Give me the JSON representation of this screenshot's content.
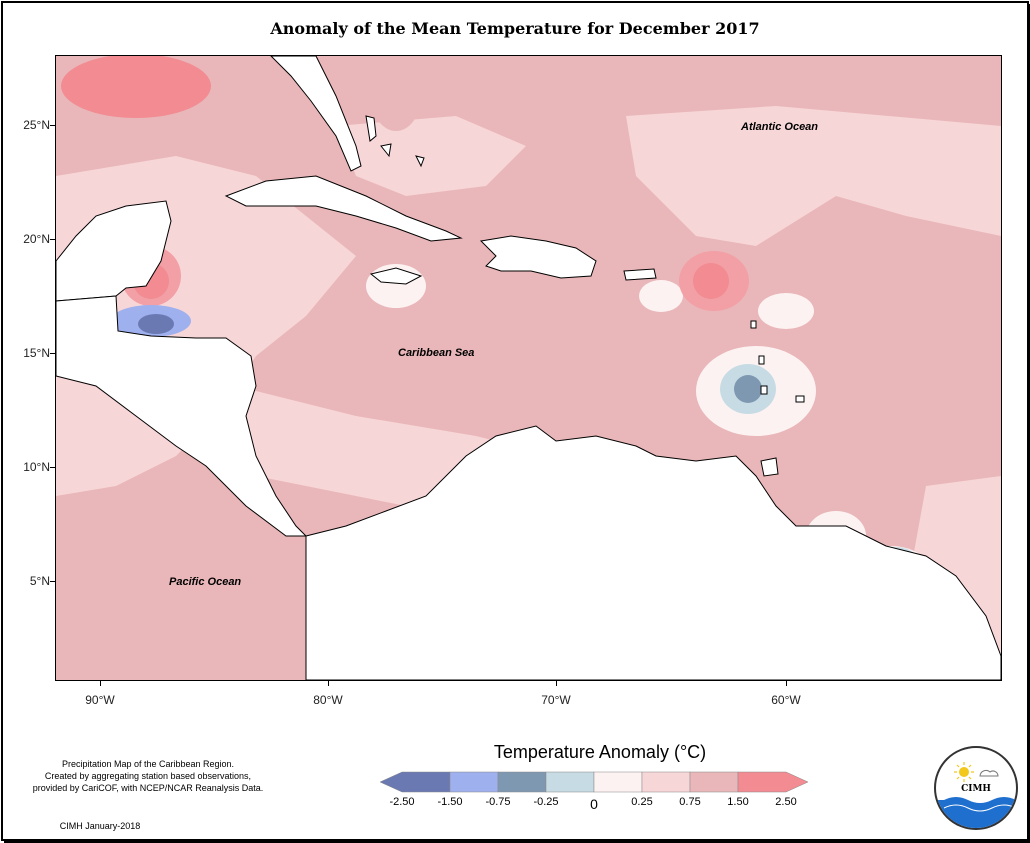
{
  "title": "Anomaly of the Mean Temperature for December 2017",
  "map": {
    "lat_ticks": [
      "25°N",
      "20°N",
      "15°N",
      "10°N",
      "5°N"
    ],
    "lon_ticks": [
      "90°W",
      "80°W",
      "70°W",
      "60°W"
    ],
    "labels": {
      "atlantic": "Atlantic Ocean",
      "caribbean": "Caribbean Sea",
      "pacific": "Pacific Ocean"
    }
  },
  "legend": {
    "title": "Temperature Anomaly (°C)",
    "tick_labels": [
      "-2.50",
      "-1.50",
      "-0.75",
      "-0.25",
      "0",
      "0.25",
      "0.75",
      "1.50",
      "2.50"
    ],
    "colors": [
      "#6b79b3",
      "#9fb0ee",
      "#7f98b2",
      "#c6dbe3",
      "#fdf2f2",
      "#f7d6d8",
      "#e9b7b9",
      "#f28b92"
    ]
  },
  "notes": {
    "line1": "Precipitation Map of the Caribbean Region.",
    "line2": "Created by aggregating station based observations,",
    "line3": "provided by CariCOF, with NCEP/NCAR Reanalysis Data.",
    "credit": "CIMH January-2018"
  },
  "logo": {
    "text": "CIMH"
  }
}
